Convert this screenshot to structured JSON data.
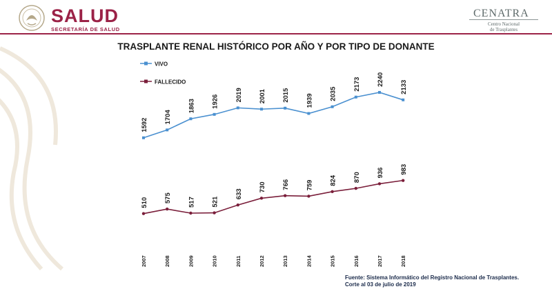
{
  "header": {
    "brand": "SALUD",
    "brand_sub": "SECRETARÍA DE SALUD",
    "org_title": "CENATRA",
    "org_sub_line1": "Centro Nacional",
    "org_sub_line2": "de Trasplantes"
  },
  "colors": {
    "brand": "#9b2247",
    "vivo": "#4a90d0",
    "fallecido": "#7a1e3a"
  },
  "chart_data": {
    "type": "line",
    "title": "TRASPLANTE RENAL HISTÓRICO POR AÑO Y POR TIPO DE DONANTE",
    "categories": [
      "2007",
      "2008",
      "2009",
      "2010",
      "2011",
      "2012",
      "2013",
      "2014",
      "2015",
      "2016",
      "2017",
      "2018"
    ],
    "series": [
      {
        "name": "VIVO",
        "values": [
          1592,
          1704,
          1863,
          1926,
          2019,
          2001,
          2015,
          1939,
          2035,
          2173,
          2240,
          2133
        ]
      },
      {
        "name": "FALLECIDO",
        "values": [
          510,
          575,
          517,
          521,
          633,
          730,
          766,
          759,
          824,
          870,
          936,
          983
        ]
      }
    ],
    "legend": "top-left",
    "grid": false
  },
  "footer": {
    "source_line1": "Fuente: Sistema Informático del Registro Nacional de Trasplantes.",
    "source_line2": "Corte al 03 de julio de 2019"
  }
}
